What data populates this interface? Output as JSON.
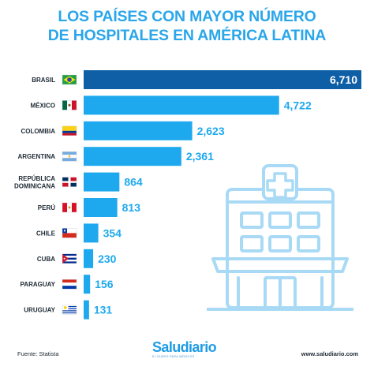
{
  "header": {
    "title_line1": "LOS PAÍSES CON MAYOR NÚMERO",
    "title_line2": "DE HOSPITALES EN AMÉRICA LATINA"
  },
  "footer": {
    "source": "Fuente: Statista",
    "brand": "Saludiario",
    "brand_tagline": "EL DIARIO PARA MÉDICOS",
    "website": "www.saludiario.com"
  },
  "colors": {
    "title": "#2aa6ea",
    "bar": "#1ea9ef",
    "bar_highlight": "#0f5fa6",
    "value_text": "#1ea9ef",
    "value_text_highlight": "#ffffff",
    "illustration": "#a9daf5"
  },
  "chart_data": {
    "type": "bar",
    "orientation": "horizontal",
    "title": "LOS PAÍSES CON MAYOR NÚMERO DE HOSPITALES EN AMÉRICA LATINA",
    "categories": [
      "BRASIL",
      "MÉXICO",
      "COLOMBIA",
      "ARGENTINA",
      "REPÚBLICA DOMINICANA",
      "PERÚ",
      "CHILE",
      "CUBA",
      "PARAGUAY",
      "URUGUAY"
    ],
    "category_lines": [
      [
        "BRASIL"
      ],
      [
        "MÉXICO"
      ],
      [
        "COLOMBIA"
      ],
      [
        "ARGENTINA"
      ],
      [
        "REPÚBLICA",
        "DOMINICANA"
      ],
      [
        "PERÚ"
      ],
      [
        "CHILE"
      ],
      [
        "CUBA"
      ],
      [
        "PARAGUAY"
      ],
      [
        "URUGUAY"
      ]
    ],
    "values": [
      6710,
      4722,
      2623,
      2361,
      864,
      813,
      354,
      230,
      156,
      131
    ],
    "value_labels": [
      "6,710",
      "4,722",
      "2,623",
      "2,361",
      "864",
      "813",
      "354",
      "230",
      "156",
      "131"
    ],
    "flags": [
      "brazil-flag",
      "mexico-flag",
      "colombia-flag",
      "argentina-flag",
      "dominican-republic-flag",
      "peru-flag",
      "chile-flag",
      "cuba-flag",
      "paraguay-flag",
      "uruguay-flag"
    ],
    "highlight_index": 0,
    "xlabel": "",
    "ylabel": "",
    "xlim": [
      0,
      6710
    ],
    "grid": false,
    "legend": "none"
  }
}
